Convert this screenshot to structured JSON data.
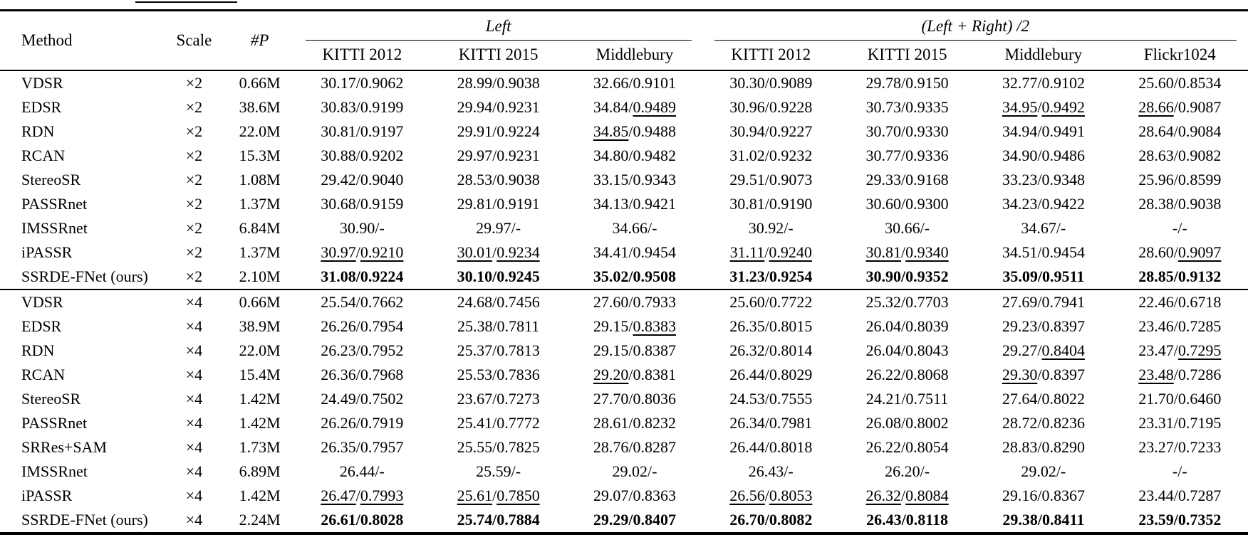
{
  "page": {
    "background": "#ffffff",
    "text_color": "#000000"
  },
  "table": {
    "header": {
      "method": "Method",
      "scale": "Scale",
      "params": "#P",
      "groups": [
        {
          "label": "Left",
          "span": 3
        },
        {
          "label": "(Left + Right) /2",
          "span": 4
        }
      ],
      "sub_columns": [
        "KITTI 2012",
        "KITTI 2015",
        "Middlebury",
        "KITTI 2012",
        "KITTI 2015",
        "Middlebury",
        "Flickr1024"
      ]
    },
    "sections": [
      {
        "scale": "×2",
        "rows": [
          {
            "method": "VDSR",
            "scale": "×2",
            "params": "0.66M",
            "bold": false,
            "cells": [
              {
                "p": "30.17",
                "s": "0.9062"
              },
              {
                "p": "28.99",
                "s": "0.9038"
              },
              {
                "p": "32.66",
                "s": "0.9101"
              },
              {
                "p": "30.30",
                "s": "0.9089"
              },
              {
                "p": "29.78",
                "s": "0.9150"
              },
              {
                "p": "32.77",
                "s": "0.9102"
              },
              {
                "p": "25.60",
                "s": "0.8534"
              }
            ]
          },
          {
            "method": "EDSR",
            "scale": "×2",
            "params": "38.6M",
            "bold": false,
            "cells": [
              {
                "p": "30.83",
                "s": "0.9199"
              },
              {
                "p": "29.94",
                "s": "0.9231"
              },
              {
                "p": "34.84",
                "s": "0.9489",
                "su": true
              },
              {
                "p": "30.96",
                "s": "0.9228"
              },
              {
                "p": "30.73",
                "s": "0.9335"
              },
              {
                "p": "34.95",
                "s": "0.9492",
                "pu": true,
                "su": true
              },
              {
                "p": "28.66",
                "s": "0.9087",
                "pu": true
              }
            ]
          },
          {
            "method": "RDN",
            "scale": "×2",
            "params": "22.0M",
            "bold": false,
            "cells": [
              {
                "p": "30.81",
                "s": "0.9197"
              },
              {
                "p": "29.91",
                "s": "0.9224"
              },
              {
                "p": "34.85",
                "s": "0.9488",
                "pu": true
              },
              {
                "p": "30.94",
                "s": "0.9227"
              },
              {
                "p": "30.70",
                "s": "0.9330"
              },
              {
                "p": "34.94",
                "s": "0.9491"
              },
              {
                "p": "28.64",
                "s": "0.9084"
              }
            ]
          },
          {
            "method": "RCAN",
            "scale": "×2",
            "params": "15.3M",
            "bold": false,
            "cells": [
              {
                "p": "30.88",
                "s": "0.9202"
              },
              {
                "p": "29.97",
                "s": "0.9231"
              },
              {
                "p": "34.80",
                "s": "0.9482"
              },
              {
                "p": "31.02",
                "s": "0.9232"
              },
              {
                "p": "30.77",
                "s": "0.9336"
              },
              {
                "p": "34.90",
                "s": "0.9486"
              },
              {
                "p": "28.63",
                "s": "0.9082"
              }
            ]
          },
          {
            "method": "StereoSR",
            "scale": "×2",
            "params": "1.08M",
            "bold": false,
            "cells": [
              {
                "p": "29.42",
                "s": "0.9040"
              },
              {
                "p": "28.53",
                "s": "0.9038"
              },
              {
                "p": "33.15",
                "s": "0.9343"
              },
              {
                "p": "29.51",
                "s": "0.9073"
              },
              {
                "p": "29.33",
                "s": "0.9168"
              },
              {
                "p": "33.23",
                "s": "0.9348"
              },
              {
                "p": "25.96",
                "s": "0.8599"
              }
            ]
          },
          {
            "method": "PASSRnet",
            "scale": "×2",
            "params": "1.37M",
            "bold": false,
            "cells": [
              {
                "p": "30.68",
                "s": "0.9159"
              },
              {
                "p": "29.81",
                "s": "0.9191"
              },
              {
                "p": "34.13",
                "s": "0.9421"
              },
              {
                "p": "30.81",
                "s": "0.9190"
              },
              {
                "p": "30.60",
                "s": "0.9300"
              },
              {
                "p": "34.23",
                "s": "0.9422"
              },
              {
                "p": "28.38",
                "s": "0.9038"
              }
            ]
          },
          {
            "method": "IMSSRnet",
            "scale": "×2",
            "params": "6.84M",
            "bold": false,
            "cells": [
              {
                "p": "30.90",
                "s": "-"
              },
              {
                "p": "29.97",
                "s": "-"
              },
              {
                "p": "34.66",
                "s": "-"
              },
              {
                "p": "30.92",
                "s": "-"
              },
              {
                "p": "30.66",
                "s": "-"
              },
              {
                "p": "34.67",
                "s": "-"
              },
              {
                "p": "-",
                "s": "-"
              }
            ]
          },
          {
            "method": "iPASSR",
            "scale": "×2",
            "params": "1.37M",
            "bold": false,
            "cells": [
              {
                "p": "30.97",
                "s": "0.9210",
                "pu": true,
                "su": true
              },
              {
                "p": "30.01",
                "s": "0.9234",
                "pu": true,
                "su": true
              },
              {
                "p": "34.41",
                "s": "0.9454"
              },
              {
                "p": "31.11",
                "s": "0.9240",
                "pu": true,
                "su": true
              },
              {
                "p": "30.81",
                "s": "0.9340",
                "pu": true,
                "su": true
              },
              {
                "p": "34.51",
                "s": "0.9454"
              },
              {
                "p": "28.60",
                "s": "0.9097",
                "su": true
              }
            ]
          },
          {
            "method": "SSRDE-FNet (ours)",
            "scale": "×2",
            "params": "2.10M",
            "bold": true,
            "cells": [
              {
                "p": "31.08",
                "s": "0.9224"
              },
              {
                "p": "30.10",
                "s": "0.9245"
              },
              {
                "p": "35.02",
                "s": "0.9508"
              },
              {
                "p": "31.23",
                "s": "0.9254"
              },
              {
                "p": "30.90",
                "s": "0.9352"
              },
              {
                "p": "35.09",
                "s": "0.9511"
              },
              {
                "p": "28.85",
                "s": "0.9132"
              }
            ]
          }
        ]
      },
      {
        "scale": "×4",
        "rows": [
          {
            "method": "VDSR",
            "scale": "×4",
            "params": "0.66M",
            "bold": false,
            "cells": [
              {
                "p": "25.54",
                "s": "0.7662"
              },
              {
                "p": "24.68",
                "s": "0.7456"
              },
              {
                "p": "27.60",
                "s": "0.7933"
              },
              {
                "p": "25.60",
                "s": "0.7722"
              },
              {
                "p": "25.32",
                "s": "0.7703"
              },
              {
                "p": "27.69",
                "s": "0.7941"
              },
              {
                "p": "22.46",
                "s": "0.6718"
              }
            ]
          },
          {
            "method": "EDSR",
            "scale": "×4",
            "params": "38.9M",
            "bold": false,
            "cells": [
              {
                "p": "26.26",
                "s": "0.7954"
              },
              {
                "p": "25.38",
                "s": "0.7811"
              },
              {
                "p": "29.15",
                "s": "0.8383",
                "su": true
              },
              {
                "p": "26.35",
                "s": "0.8015"
              },
              {
                "p": "26.04",
                "s": "0.8039"
              },
              {
                "p": "29.23",
                "s": "0.8397"
              },
              {
                "p": "23.46",
                "s": "0.7285"
              }
            ]
          },
          {
            "method": "RDN",
            "scale": "×4",
            "params": "22.0M",
            "bold": false,
            "cells": [
              {
                "p": "26.23",
                "s": "0.7952"
              },
              {
                "p": "25.37",
                "s": "0.7813"
              },
              {
                "p": "29.15",
                "s": "0.8387"
              },
              {
                "p": "26.32",
                "s": "0.8014"
              },
              {
                "p": "26.04",
                "s": "0.8043"
              },
              {
                "p": "29.27",
                "s": "0.8404",
                "su": true
              },
              {
                "p": "23.47",
                "s": "0.7295",
                "su": true
              }
            ]
          },
          {
            "method": "RCAN",
            "scale": "×4",
            "params": "15.4M",
            "bold": false,
            "cells": [
              {
                "p": "26.36",
                "s": "0.7968"
              },
              {
                "p": "25.53",
                "s": "0.7836"
              },
              {
                "p": "29.20",
                "s": "0.8381",
                "pu": true
              },
              {
                "p": "26.44",
                "s": "0.8029"
              },
              {
                "p": "26.22",
                "s": "0.8068"
              },
              {
                "p": "29.30",
                "s": "0.8397",
                "pu": true
              },
              {
                "p": "23.48",
                "s": "0.7286",
                "pu": true
              }
            ]
          },
          {
            "method": "StereoSR",
            "scale": "×4",
            "params": "1.42M",
            "bold": false,
            "cells": [
              {
                "p": "24.49",
                "s": "0.7502"
              },
              {
                "p": "23.67",
                "s": "0.7273"
              },
              {
                "p": "27.70",
                "s": "0.8036"
              },
              {
                "p": "24.53",
                "s": "0.7555"
              },
              {
                "p": "24.21",
                "s": "0.7511"
              },
              {
                "p": "27.64",
                "s": "0.8022"
              },
              {
                "p": "21.70",
                "s": "0.6460"
              }
            ]
          },
          {
            "method": "PASSRnet",
            "scale": "×4",
            "params": "1.42M",
            "bold": false,
            "cells": [
              {
                "p": "26.26",
                "s": "0.7919"
              },
              {
                "p": "25.41",
                "s": "0.7772"
              },
              {
                "p": "28.61",
                "s": "0.8232"
              },
              {
                "p": "26.34",
                "s": "0.7981"
              },
              {
                "p": "26.08",
                "s": "0.8002"
              },
              {
                "p": "28.72",
                "s": "0.8236"
              },
              {
                "p": "23.31",
                "s": "0.7195"
              }
            ]
          },
          {
            "method": "SRRes+SAM",
            "scale": "×4",
            "params": "1.73M",
            "bold": false,
            "cells": [
              {
                "p": "26.35",
                "s": "0.7957"
              },
              {
                "p": "25.55",
                "s": "0.7825"
              },
              {
                "p": "28.76",
                "s": "0.8287"
              },
              {
                "p": "26.44",
                "s": "0.8018"
              },
              {
                "p": "26.22",
                "s": "0.8054"
              },
              {
                "p": "28.83",
                "s": "0.8290"
              },
              {
                "p": "23.27",
                "s": "0.7233"
              }
            ]
          },
          {
            "method": "IMSSRnet",
            "scale": "×4",
            "params": "6.89M",
            "bold": false,
            "cells": [
              {
                "p": "26.44",
                "s": "-"
              },
              {
                "p": "25.59",
                "s": "-"
              },
              {
                "p": "29.02",
                "s": "-"
              },
              {
                "p": "26.43",
                "s": "-"
              },
              {
                "p": "26.20",
                "s": "-"
              },
              {
                "p": "29.02",
                "s": "-"
              },
              {
                "p": "-",
                "s": "-"
              }
            ]
          },
          {
            "method": "iPASSR",
            "scale": "×4",
            "params": "1.42M",
            "bold": false,
            "cells": [
              {
                "p": "26.47",
                "s": "0.7993",
                "pu": true,
                "su": true
              },
              {
                "p": "25.61",
                "s": "0.7850",
                "pu": true,
                "su": true
              },
              {
                "p": "29.07",
                "s": "0.8363"
              },
              {
                "p": "26.56",
                "s": "0.8053",
                "pu": true,
                "su": true
              },
              {
                "p": "26.32",
                "s": "0.8084",
                "pu": true,
                "su": true
              },
              {
                "p": "29.16",
                "s": "0.8367"
              },
              {
                "p": "23.44",
                "s": "0.7287"
              }
            ]
          },
          {
            "method": "SSRDE-FNet (ours)",
            "scale": "×4",
            "params": "2.24M",
            "bold": true,
            "cells": [
              {
                "p": "26.61",
                "s": "0.8028"
              },
              {
                "p": "25.74",
                "s": "0.7884"
              },
              {
                "p": "29.29",
                "s": "0.8407"
              },
              {
                "p": "26.70",
                "s": "0.8082"
              },
              {
                "p": "26.43",
                "s": "0.8118"
              },
              {
                "p": "29.38",
                "s": "0.8411"
              },
              {
                "p": "23.59",
                "s": "0.7352"
              }
            ]
          }
        ]
      }
    ]
  }
}
